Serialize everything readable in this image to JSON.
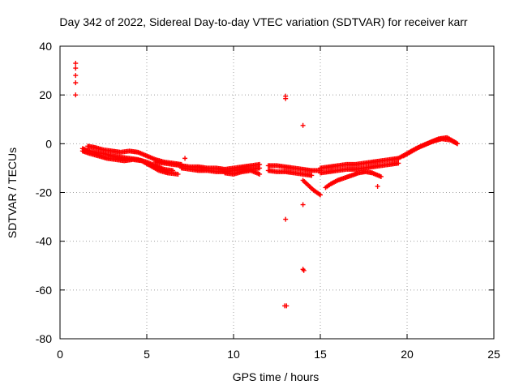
{
  "chart_data": {
    "type": "scatter",
    "title": "Day 342 of 2022, Sidereal Day-to-day VTEC variation (SDTVAR) for receiver karr",
    "xlabel": "GPS time / hours",
    "ylabel": "SDTVAR / TECUs",
    "xlim": [
      0,
      25
    ],
    "ylim": [
      -80,
      40
    ],
    "xticks": [
      0,
      5,
      10,
      15,
      20,
      25
    ],
    "yticks": [
      -80,
      -60,
      -40,
      -20,
      0,
      20,
      40
    ],
    "grid": true,
    "marker": "+",
    "color": "#ff0000",
    "bands": [
      {
        "name": "band-1",
        "x": [
          1.3,
          1.7,
          2.0,
          2.5,
          3.0,
          3.5,
          4.0,
          4.5,
          5.0,
          5.5,
          6.0,
          6.5
        ],
        "y": [
          -2,
          -3,
          -3.5,
          -4,
          -5,
          -5.5,
          -6,
          -6.5,
          -7.5,
          -9,
          -10.5,
          -11
        ]
      },
      {
        "name": "band-2",
        "x": [
          1.3,
          1.7,
          2.2,
          2.7,
          3.2,
          3.7,
          4.2,
          4.7,
          5.2,
          5.7,
          6.2,
          6.8
        ],
        "y": [
          -3,
          -4,
          -5,
          -6,
          -6.5,
          -7,
          -6.5,
          -7,
          -9,
          -11,
          -12,
          -12.5
        ]
      },
      {
        "name": "band-3",
        "x": [
          1.6,
          2.0,
          2.5,
          3.0,
          3.5,
          4.0,
          4.5,
          5.0,
          5.5,
          6.0,
          6.5,
          7.0
        ],
        "y": [
          -1,
          -1.5,
          -2.5,
          -3,
          -3.5,
          -3,
          -3.5,
          -5,
          -6.5,
          -7.5,
          -8,
          -8.5
        ]
      },
      {
        "name": "band-4",
        "x": [
          5.5,
          6.0,
          6.5,
          7.0,
          7.5,
          8.0,
          8.5,
          9.0,
          9.5,
          10.0,
          10.5,
          11.0,
          11.5
        ],
        "y": [
          -7.5,
          -8,
          -8.5,
          -9,
          -9.5,
          -9.5,
          -10,
          -10,
          -10.5,
          -10,
          -9.5,
          -9,
          -8.5
        ]
      },
      {
        "name": "band-5",
        "x": [
          7.0,
          7.5,
          8.0,
          8.5,
          9.0,
          9.5,
          10.0,
          10.5,
          11.0,
          11.5
        ],
        "y": [
          -10,
          -10.5,
          -11,
          -11,
          -11.5,
          -11.5,
          -11,
          -10.5,
          -10.5,
          -10
        ]
      },
      {
        "name": "band-6",
        "x": [
          9.5,
          10.0,
          10.5,
          11.0,
          11.5
        ],
        "y": [
          -12,
          -12.5,
          -11.5,
          -11,
          -12.5
        ]
      },
      {
        "name": "band-7",
        "x": [
          12.0,
          12.5,
          13.0,
          13.5,
          14.0,
          14.5,
          15.0
        ],
        "y": [
          -9,
          -9,
          -9.5,
          -10,
          -10.5,
          -11,
          -11
        ]
      },
      {
        "name": "band-8",
        "x": [
          12.0,
          12.5,
          13.0,
          13.5,
          14.0,
          14.5
        ],
        "y": [
          -11,
          -11.5,
          -11.5,
          -12,
          -12.5,
          -13
        ]
      },
      {
        "name": "band-9",
        "x": [
          14.0,
          14.3,
          14.6,
          15.0
        ],
        "y": [
          -15,
          -17,
          -19,
          -21
        ]
      },
      {
        "name": "band-10",
        "x": [
          15.0,
          15.5,
          16.0,
          16.5,
          17.0,
          17.5,
          18.0,
          18.5,
          19.0,
          19.5
        ],
        "y": [
          -10,
          -9.5,
          -9,
          -8.5,
          -8.5,
          -8,
          -7.5,
          -7,
          -6.5,
          -6
        ]
      },
      {
        "name": "band-11",
        "x": [
          15.0,
          15.5,
          16.0,
          16.5,
          17.0,
          17.5,
          18.0,
          18.5,
          19.0,
          19.5
        ],
        "y": [
          -12,
          -11.5,
          -11,
          -10.5,
          -10.5,
          -10,
          -9.5,
          -9,
          -8.5,
          -8
        ]
      },
      {
        "name": "band-12",
        "x": [
          15.3,
          15.6,
          16.0,
          16.4,
          16.8,
          17.2,
          17.6,
          18.0,
          18.5
        ],
        "y": [
          -18,
          -16.5,
          -15,
          -14,
          -13,
          -12,
          -11.5,
          -12,
          -13.5
        ]
      },
      {
        "name": "band-13",
        "x": [
          19.5,
          20.0,
          20.5,
          21.0,
          21.5,
          22.0,
          22.5,
          22.9
        ],
        "y": [
          -6,
          -4,
          -2,
          -0.5,
          1,
          2,
          1.5,
          0
        ]
      },
      {
        "name": "band-14",
        "x": [
          19.8,
          20.3,
          20.8,
          21.3,
          21.8,
          22.3,
          22.8
        ],
        "y": [
          -5,
          -3,
          -1,
          0.5,
          2,
          2.5,
          0.5
        ]
      }
    ],
    "outliers": [
      {
        "x": 0.9,
        "y": 33
      },
      {
        "x": 0.9,
        "y": 31
      },
      {
        "x": 0.9,
        "y": 28
      },
      {
        "x": 0.9,
        "y": 25
      },
      {
        "x": 0.9,
        "y": 20
      },
      {
        "x": 13.0,
        "y": 19.5
      },
      {
        "x": 13.0,
        "y": 18.5
      },
      {
        "x": 14.0,
        "y": 7.5
      },
      {
        "x": 13.0,
        "y": -31
      },
      {
        "x": 14.0,
        "y": -25
      },
      {
        "x": 14.0,
        "y": -51.5
      },
      {
        "x": 14.05,
        "y": -52
      },
      {
        "x": 12.95,
        "y": -66.5
      },
      {
        "x": 13.05,
        "y": -66.5
      },
      {
        "x": 7.2,
        "y": -6
      },
      {
        "x": 18.3,
        "y": -17.5
      }
    ]
  }
}
